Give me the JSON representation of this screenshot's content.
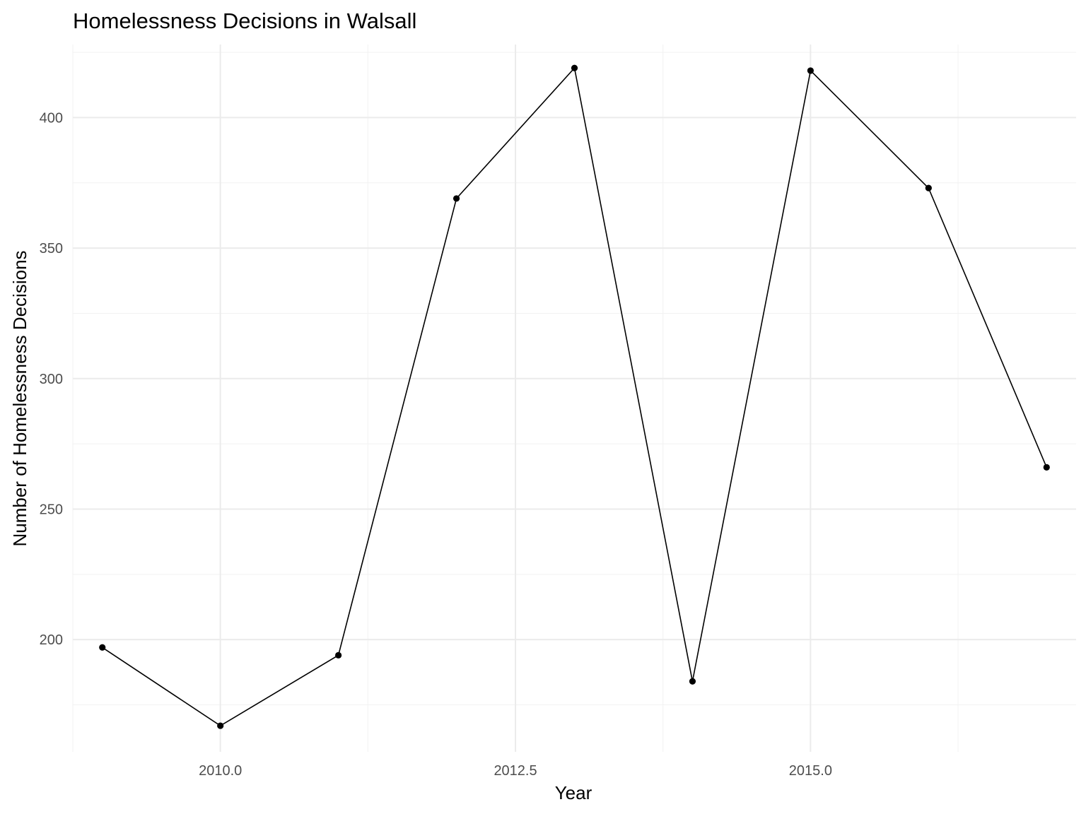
{
  "chart_data": {
    "type": "line",
    "title": "Homelessness Decisions in Walsall",
    "xlabel": "Year",
    "ylabel": "Number of Homelessness Decisions",
    "x": [
      2009,
      2010,
      2011,
      2012,
      2013,
      2014,
      2015,
      2016,
      2017
    ],
    "series": [
      {
        "values": [
          197,
          167,
          194,
          369,
          419,
          184,
          418,
          373,
          266
        ]
      }
    ],
    "xlim": [
      2008.75,
      2017.25
    ],
    "ylim": [
      157,
      428
    ],
    "x_ticks": [
      2010.0,
      2012.5,
      2015.0
    ],
    "x_tick_labels": [
      "2010.0",
      "2012.5",
      "2015.0"
    ],
    "x_minor_ticks": [
      2008.75,
      2011.25,
      2013.75,
      2016.25
    ],
    "y_ticks": [
      200,
      250,
      300,
      350,
      400
    ],
    "y_tick_labels": [
      "200",
      "250",
      "300",
      "350",
      "400"
    ],
    "y_minor_ticks": [
      175,
      225,
      275,
      325,
      375,
      425
    ],
    "grid": true,
    "legend": "none",
    "colors": {
      "line": "#000000",
      "point": "#000000",
      "grid_major": "#ebebeb",
      "grid_minor": "#f2f2f2",
      "tick_text": "#4d4d4d"
    }
  }
}
